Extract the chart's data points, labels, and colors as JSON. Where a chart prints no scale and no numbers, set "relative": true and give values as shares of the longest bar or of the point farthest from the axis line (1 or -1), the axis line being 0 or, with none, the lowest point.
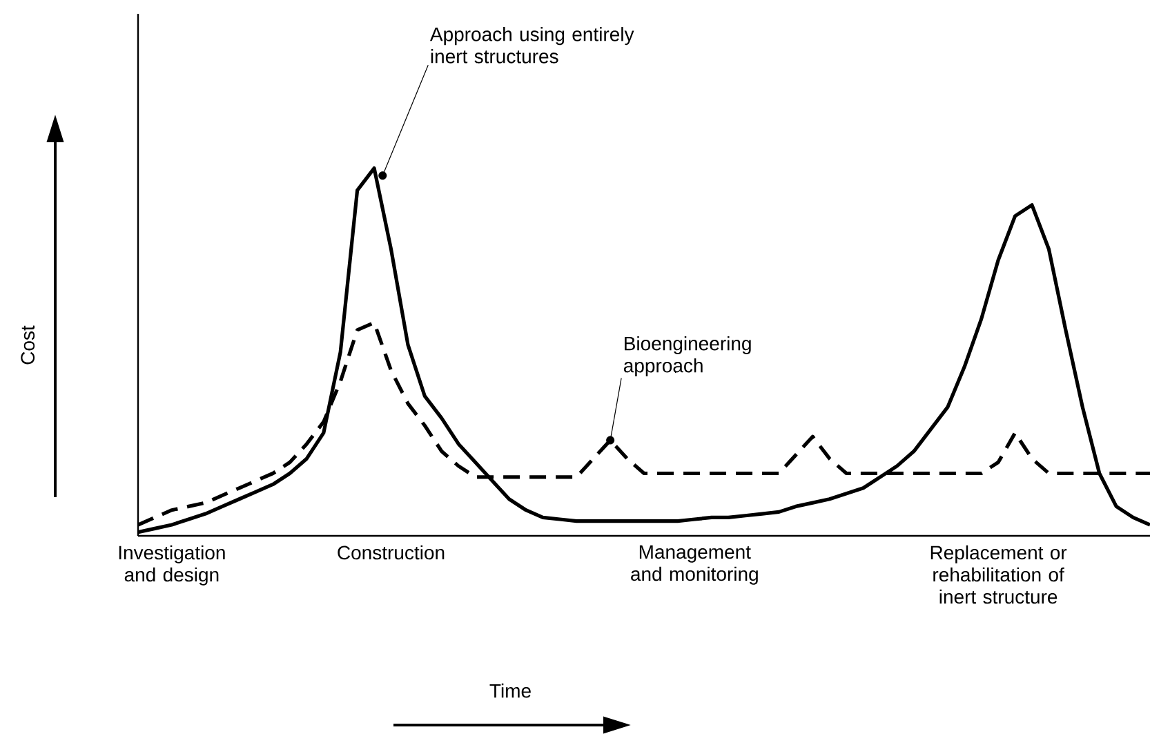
{
  "chart_data": {
    "type": "line",
    "relative": true,
    "xlabel": "Time",
    "ylabel": "Cost",
    "grid": false,
    "categories": [
      null,
      null,
      "Investigation and design",
      null,
      null,
      null,
      null,
      null,
      null,
      null,
      null,
      null,
      null,
      null,
      null,
      "Construction",
      null,
      null,
      null,
      null,
      null,
      null,
      null,
      null,
      null,
      null,
      null,
      null,
      null,
      null,
      null,
      null,
      null,
      "Management and monitoring",
      null,
      null,
      null,
      null,
      null,
      null,
      null,
      null,
      null,
      null,
      null,
      null,
      null,
      null,
      null,
      null,
      null,
      "Replacement or rehabilitation of inert structure",
      null,
      null,
      null,
      null,
      null,
      null,
      null,
      null,
      null
    ],
    "series": [
      {
        "name": "Approach using entirely inert structures",
        "color": "#000000",
        "line_style": "solid",
        "values": [
          0.01,
          0.02,
          0.03,
          0.045,
          0.06,
          0.08,
          0.1,
          0.12,
          0.14,
          0.17,
          0.21,
          0.28,
          0.5,
          0.94,
          1,
          0.78,
          0.52,
          0.38,
          0.32,
          0.25,
          0.2,
          0.15,
          0.1,
          0.07,
          0.05,
          0.045,
          0.04,
          0.04,
          0.04,
          0.04,
          0.04,
          0.04,
          0.04,
          0.045,
          0.05,
          0.05,
          0.055,
          0.06,
          0.065,
          0.08,
          0.09,
          0.1,
          0.115,
          0.13,
          0.16,
          0.19,
          0.23,
          0.29,
          0.35,
          0.46,
          0.59,
          0.75,
          0.87,
          0.9,
          0.78,
          0.56,
          0.35,
          0.17,
          0.08,
          0.05,
          0.03
        ]
      },
      {
        "name": "Bioengineering approach",
        "color": "#000000",
        "line_style": "dashed",
        "values": [
          0.03,
          0.05,
          0.07,
          0.08,
          0.09,
          0.11,
          0.13,
          0.15,
          0.17,
          0.2,
          0.25,
          0.31,
          0.42,
          0.56,
          0.58,
          0.45,
          0.36,
          0.3,
          0.23,
          0.19,
          0.16,
          0.16,
          0.16,
          0.16,
          0.16,
          0.16,
          0.16,
          0.21,
          0.26,
          0.21,
          0.17,
          0.17,
          0.17,
          0.17,
          0.17,
          0.17,
          0.17,
          0.17,
          0.17,
          0.22,
          0.27,
          0.21,
          0.17,
          0.17,
          0.17,
          0.17,
          0.17,
          0.17,
          0.17,
          0.17,
          0.17,
          0.2,
          0.28,
          0.21,
          0.17,
          0.17,
          0.17,
          0.17,
          0.17,
          0.17,
          0.17
        ]
      }
    ]
  }
}
